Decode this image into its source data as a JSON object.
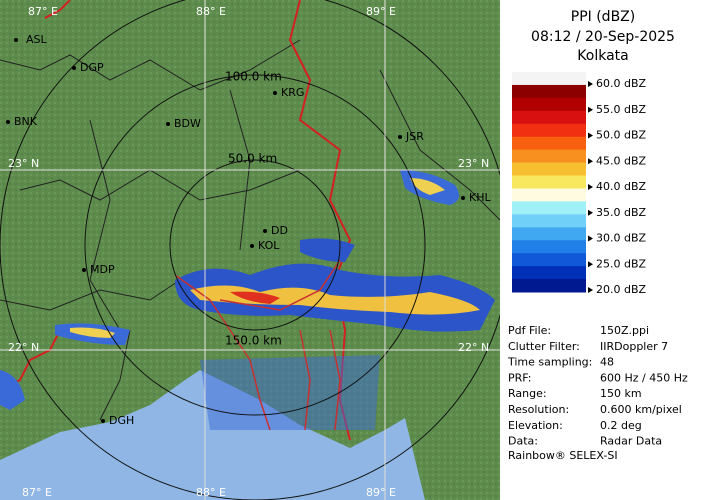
{
  "map": {
    "grid_labels": [
      "87° E",
      "88° E",
      "89° E",
      "23° N",
      "23° N",
      "22° N",
      "22° N",
      "87° E",
      "88° E",
      "89° E"
    ],
    "range_labels": [
      "100.0 km",
      "50.0 km",
      "150.0 km"
    ],
    "cities": [
      "ASL",
      "DGP",
      "KRG",
      "BDW",
      "BNK",
      "JSR",
      "KHL",
      "DD",
      "KOL",
      "MDP",
      "DGH"
    ]
  },
  "legend": {
    "title": "PPI (dBZ)",
    "time": "08:12 / 20-Sep-2025",
    "site": "Kolkata",
    "labels": [
      "60.0 dBZ",
      "55.0 dBZ",
      "50.0 dBZ",
      "45.0 dBZ",
      "40.0 dBZ",
      "35.0 dBZ",
      "30.0 dBZ",
      "25.0 dBZ",
      "20.0 dBZ"
    ],
    "colors": [
      "#f4f4f4",
      "#8c0000",
      "#b00000",
      "#d81010",
      "#f03010",
      "#f86010",
      "#f89020",
      "#f8c030",
      "#f8e860",
      "#fffbe0",
      "#a0f0f8",
      "#70d0f8",
      "#40a8f0",
      "#2080e8",
      "#1058d8",
      "#0030b8",
      "#001890"
    ]
  },
  "info": [
    [
      "Pdf File:",
      "150Z.ppi"
    ],
    [
      "Clutter Filter:",
      "IIRDoppler 7"
    ],
    [
      "Time sampling:",
      "48"
    ],
    [
      "PRF:",
      "600 Hz / 450 Hz"
    ],
    [
      "Range:",
      "150 km"
    ],
    [
      "Resolution:",
      "0.600 km/pixel"
    ],
    [
      "Elevation:",
      "0.2 deg"
    ],
    [
      "Data:",
      "Radar Data"
    ]
  ],
  "footer": "Rainbow® SELEX-SI"
}
